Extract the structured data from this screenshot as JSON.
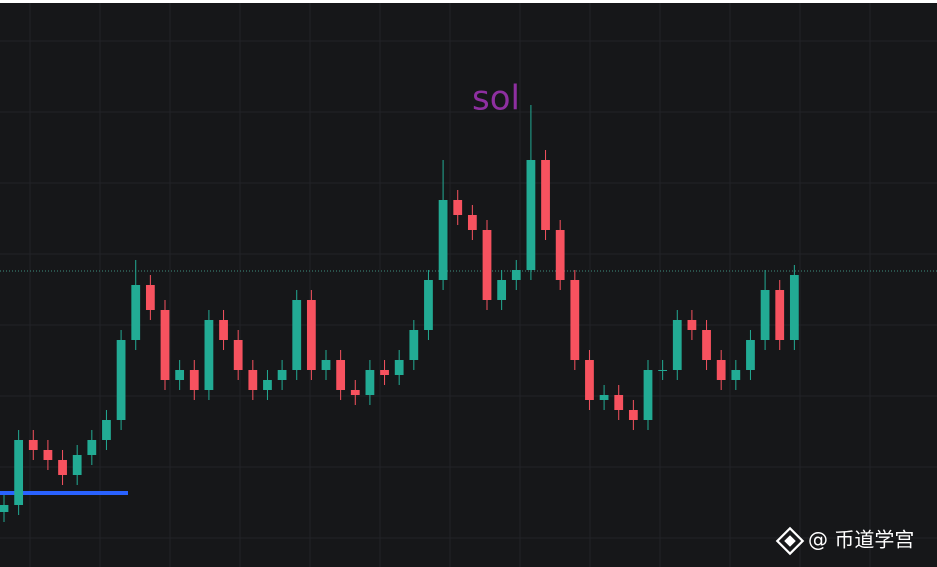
{
  "chart_data": {
    "type": "candlestick",
    "annotation": "sol",
    "annotation_color": "#8e2fa0",
    "watermark": "@ 币道学宫",
    "up_color": "#22ab94",
    "down_color": "#f7525f",
    "ylim": [
      0,
      567
    ],
    "grid": true,
    "levels": [
      {
        "value": 296,
        "color": "#3d8f80",
        "style": "dotted"
      },
      {
        "value": 74,
        "color": "#2962ff",
        "style": "solid"
      }
    ],
    "open": [
      55,
      62,
      127,
      117,
      107,
      92,
      112,
      127,
      147,
      227,
      282,
      257,
      187,
      197,
      177,
      247,
      227,
      197,
      177,
      187,
      197,
      267,
      197,
      207,
      177,
      172,
      197,
      192,
      207,
      237,
      287,
      367,
      352,
      337,
      267,
      287,
      297,
      407,
      337,
      287,
      207,
      167,
      172,
      157,
      147,
      197,
      197,
      247,
      237,
      207,
      187,
      197,
      227,
      277,
      227
    ],
    "high": [
      72,
      137,
      137,
      127,
      117,
      122,
      137,
      157,
      237,
      307,
      292,
      267,
      207,
      207,
      257,
      257,
      237,
      207,
      197,
      207,
      277,
      277,
      217,
      217,
      187,
      207,
      207,
      217,
      247,
      297,
      407,
      377,
      362,
      347,
      297,
      307,
      462,
      417,
      347,
      297,
      217,
      182,
      182,
      167,
      207,
      207,
      257,
      257,
      247,
      217,
      207,
      237,
      297,
      287,
      302
    ],
    "low": [
      45,
      52,
      107,
      97,
      82,
      82,
      102,
      117,
      137,
      217,
      247,
      177,
      177,
      167,
      167,
      217,
      187,
      167,
      167,
      177,
      187,
      187,
      187,
      167,
      162,
      162,
      182,
      182,
      197,
      227,
      277,
      342,
      327,
      257,
      257,
      277,
      287,
      327,
      277,
      197,
      157,
      157,
      147,
      137,
      137,
      187,
      187,
      227,
      197,
      177,
      177,
      187,
      217,
      217,
      217
    ],
    "close": [
      62,
      127,
      117,
      107,
      92,
      112,
      127,
      147,
      227,
      282,
      257,
      187,
      197,
      177,
      247,
      227,
      197,
      177,
      187,
      197,
      267,
      197,
      207,
      177,
      172,
      197,
      192,
      207,
      237,
      287,
      367,
      352,
      337,
      267,
      287,
      297,
      407,
      337,
      287,
      207,
      167,
      172,
      157,
      147,
      197,
      197,
      247,
      237,
      207,
      187,
      197,
      227,
      277,
      227,
      292
    ]
  }
}
